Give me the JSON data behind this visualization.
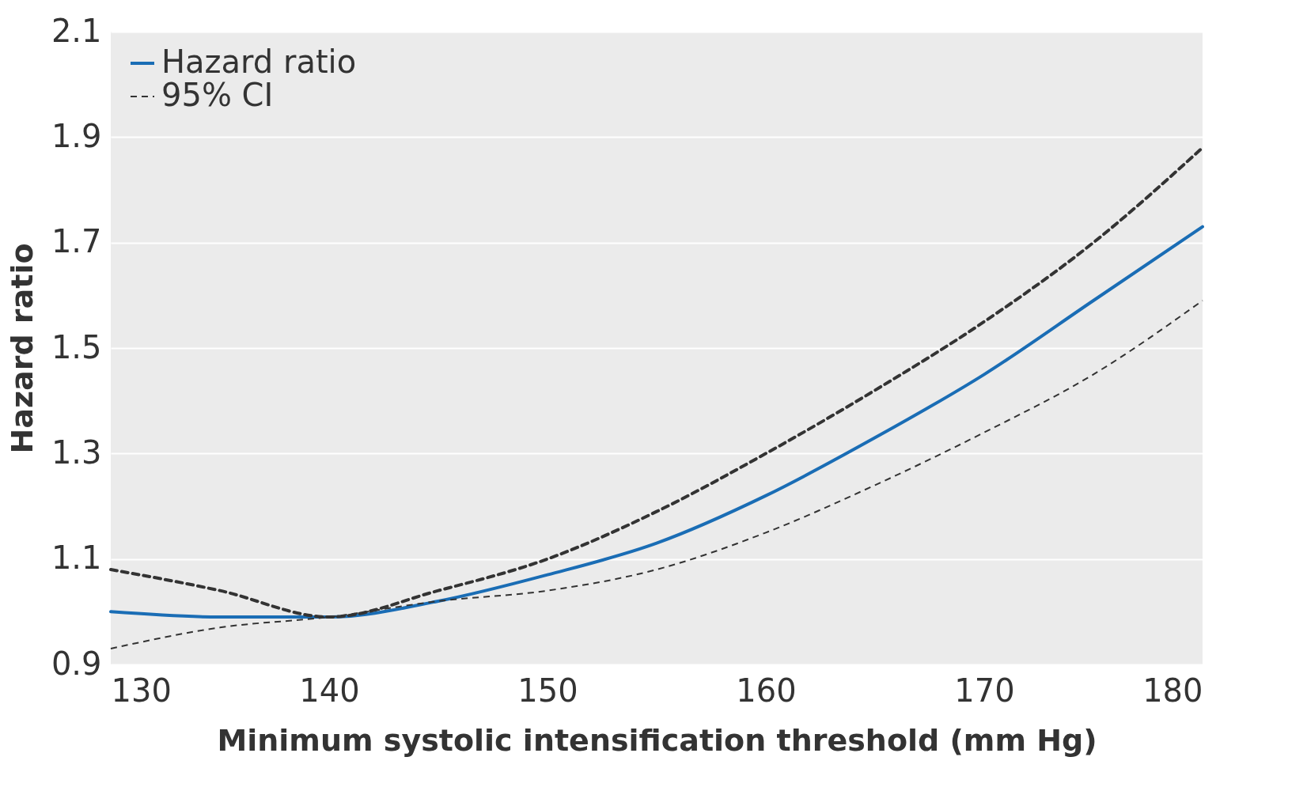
{
  "chart_data": {
    "type": "line",
    "xlabel": "Minimum systolic intensification threshold (mm Hg)",
    "ylabel": "Hazard ratio",
    "x": [
      130,
      135,
      140,
      145,
      150,
      155,
      160,
      165,
      170,
      175,
      180
    ],
    "series": [
      {
        "name": "Hazard ratio",
        "color": "#1a6db5",
        "line_style": "solid",
        "values": [
          1.0,
          0.99,
          0.99,
          1.02,
          1.07,
          1.13,
          1.22,
          1.33,
          1.45,
          1.59,
          1.73
        ]
      },
      {
        "name": "95% CI",
        "color": "#333333",
        "line_style": "dashed",
        "values": [
          1.08,
          1.04,
          0.99,
          1.04,
          1.1,
          1.19,
          1.3,
          1.42,
          1.55,
          1.7,
          1.88
        ]
      },
      {
        "color": "#333333",
        "line_style": "dashed",
        "values": [
          0.93,
          0.97,
          0.99,
          1.02,
          1.04,
          1.08,
          1.15,
          1.24,
          1.34,
          1.45,
          1.59
        ]
      }
    ],
    "xlim": [
      130,
      180
    ],
    "xticks": [
      130,
      140,
      150,
      160,
      170,
      180
    ],
    "ylim": [
      0.9,
      2.1
    ],
    "yticks": [
      0.9,
      1.1,
      1.3,
      1.5,
      1.7,
      1.9,
      2.1
    ],
    "grid": "y",
    "legend": "top left",
    "marker": "none"
  }
}
